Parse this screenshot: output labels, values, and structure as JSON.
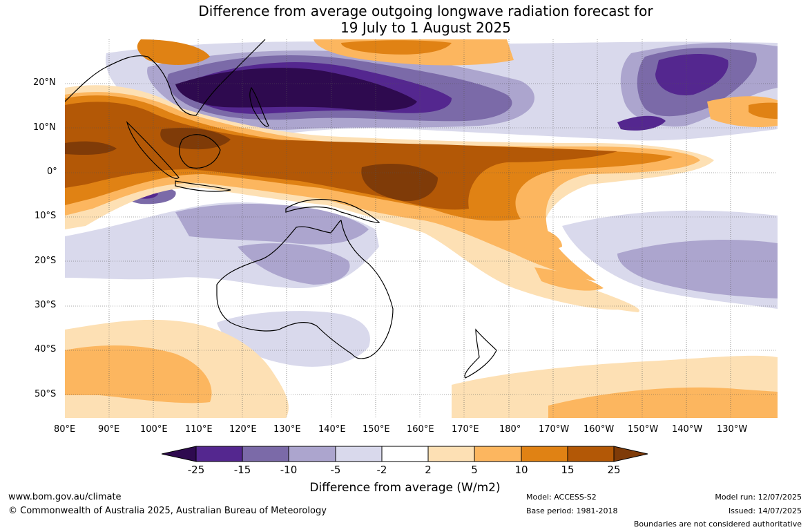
{
  "title": {
    "line1": "Difference from average outgoing longwave radiation forecast for",
    "line2": "19 July to 1 August 2025"
  },
  "axes": {
    "lon_labels": [
      "80°E",
      "90°E",
      "100°E",
      "110°E",
      "120°E",
      "130°E",
      "140°E",
      "150°E",
      "160°E",
      "170°E",
      "180°",
      "170°W",
      "160°W",
      "150°W",
      "140°W",
      "130°W"
    ],
    "lat_labels": [
      "20°N",
      "10°N",
      "0°",
      "10°S",
      "20°S",
      "30°S",
      "40°S",
      "50°S"
    ]
  },
  "colorbar": {
    "title": "Difference from average (W/m2)",
    "labels": [
      "-25",
      "-15",
      "-10",
      "-5",
      "-2",
      "2",
      "5",
      "10",
      "15",
      "25"
    ],
    "colors": {
      "lt_-25": "#2e0a4f",
      "-25_-15": "#54278f",
      "-15_-10": "#7b6aa8",
      "-10_-5": "#aca5ce",
      "-5_-2": "#d9d9ec",
      "-2_2": "#ffffff",
      "2_5": "#fde0b4",
      "5_10": "#fcb65f",
      "10_15": "#e08214",
      "15_25": "#b35806",
      "gt_25": "#7f3b08"
    }
  },
  "footer": {
    "website": "www.bom.gov.au/climate",
    "copyright": "© Commonwealth of Australia 2025, Australian Bureau of Meteorology",
    "model": "Model: ACCESS-S2",
    "base_period": "Base period: 1981-2018",
    "model_run": "Model run: 12/07/2025",
    "issued": "Issued: 14/07/2025",
    "disclaimer": "Boundaries are not considered authoritative"
  }
}
